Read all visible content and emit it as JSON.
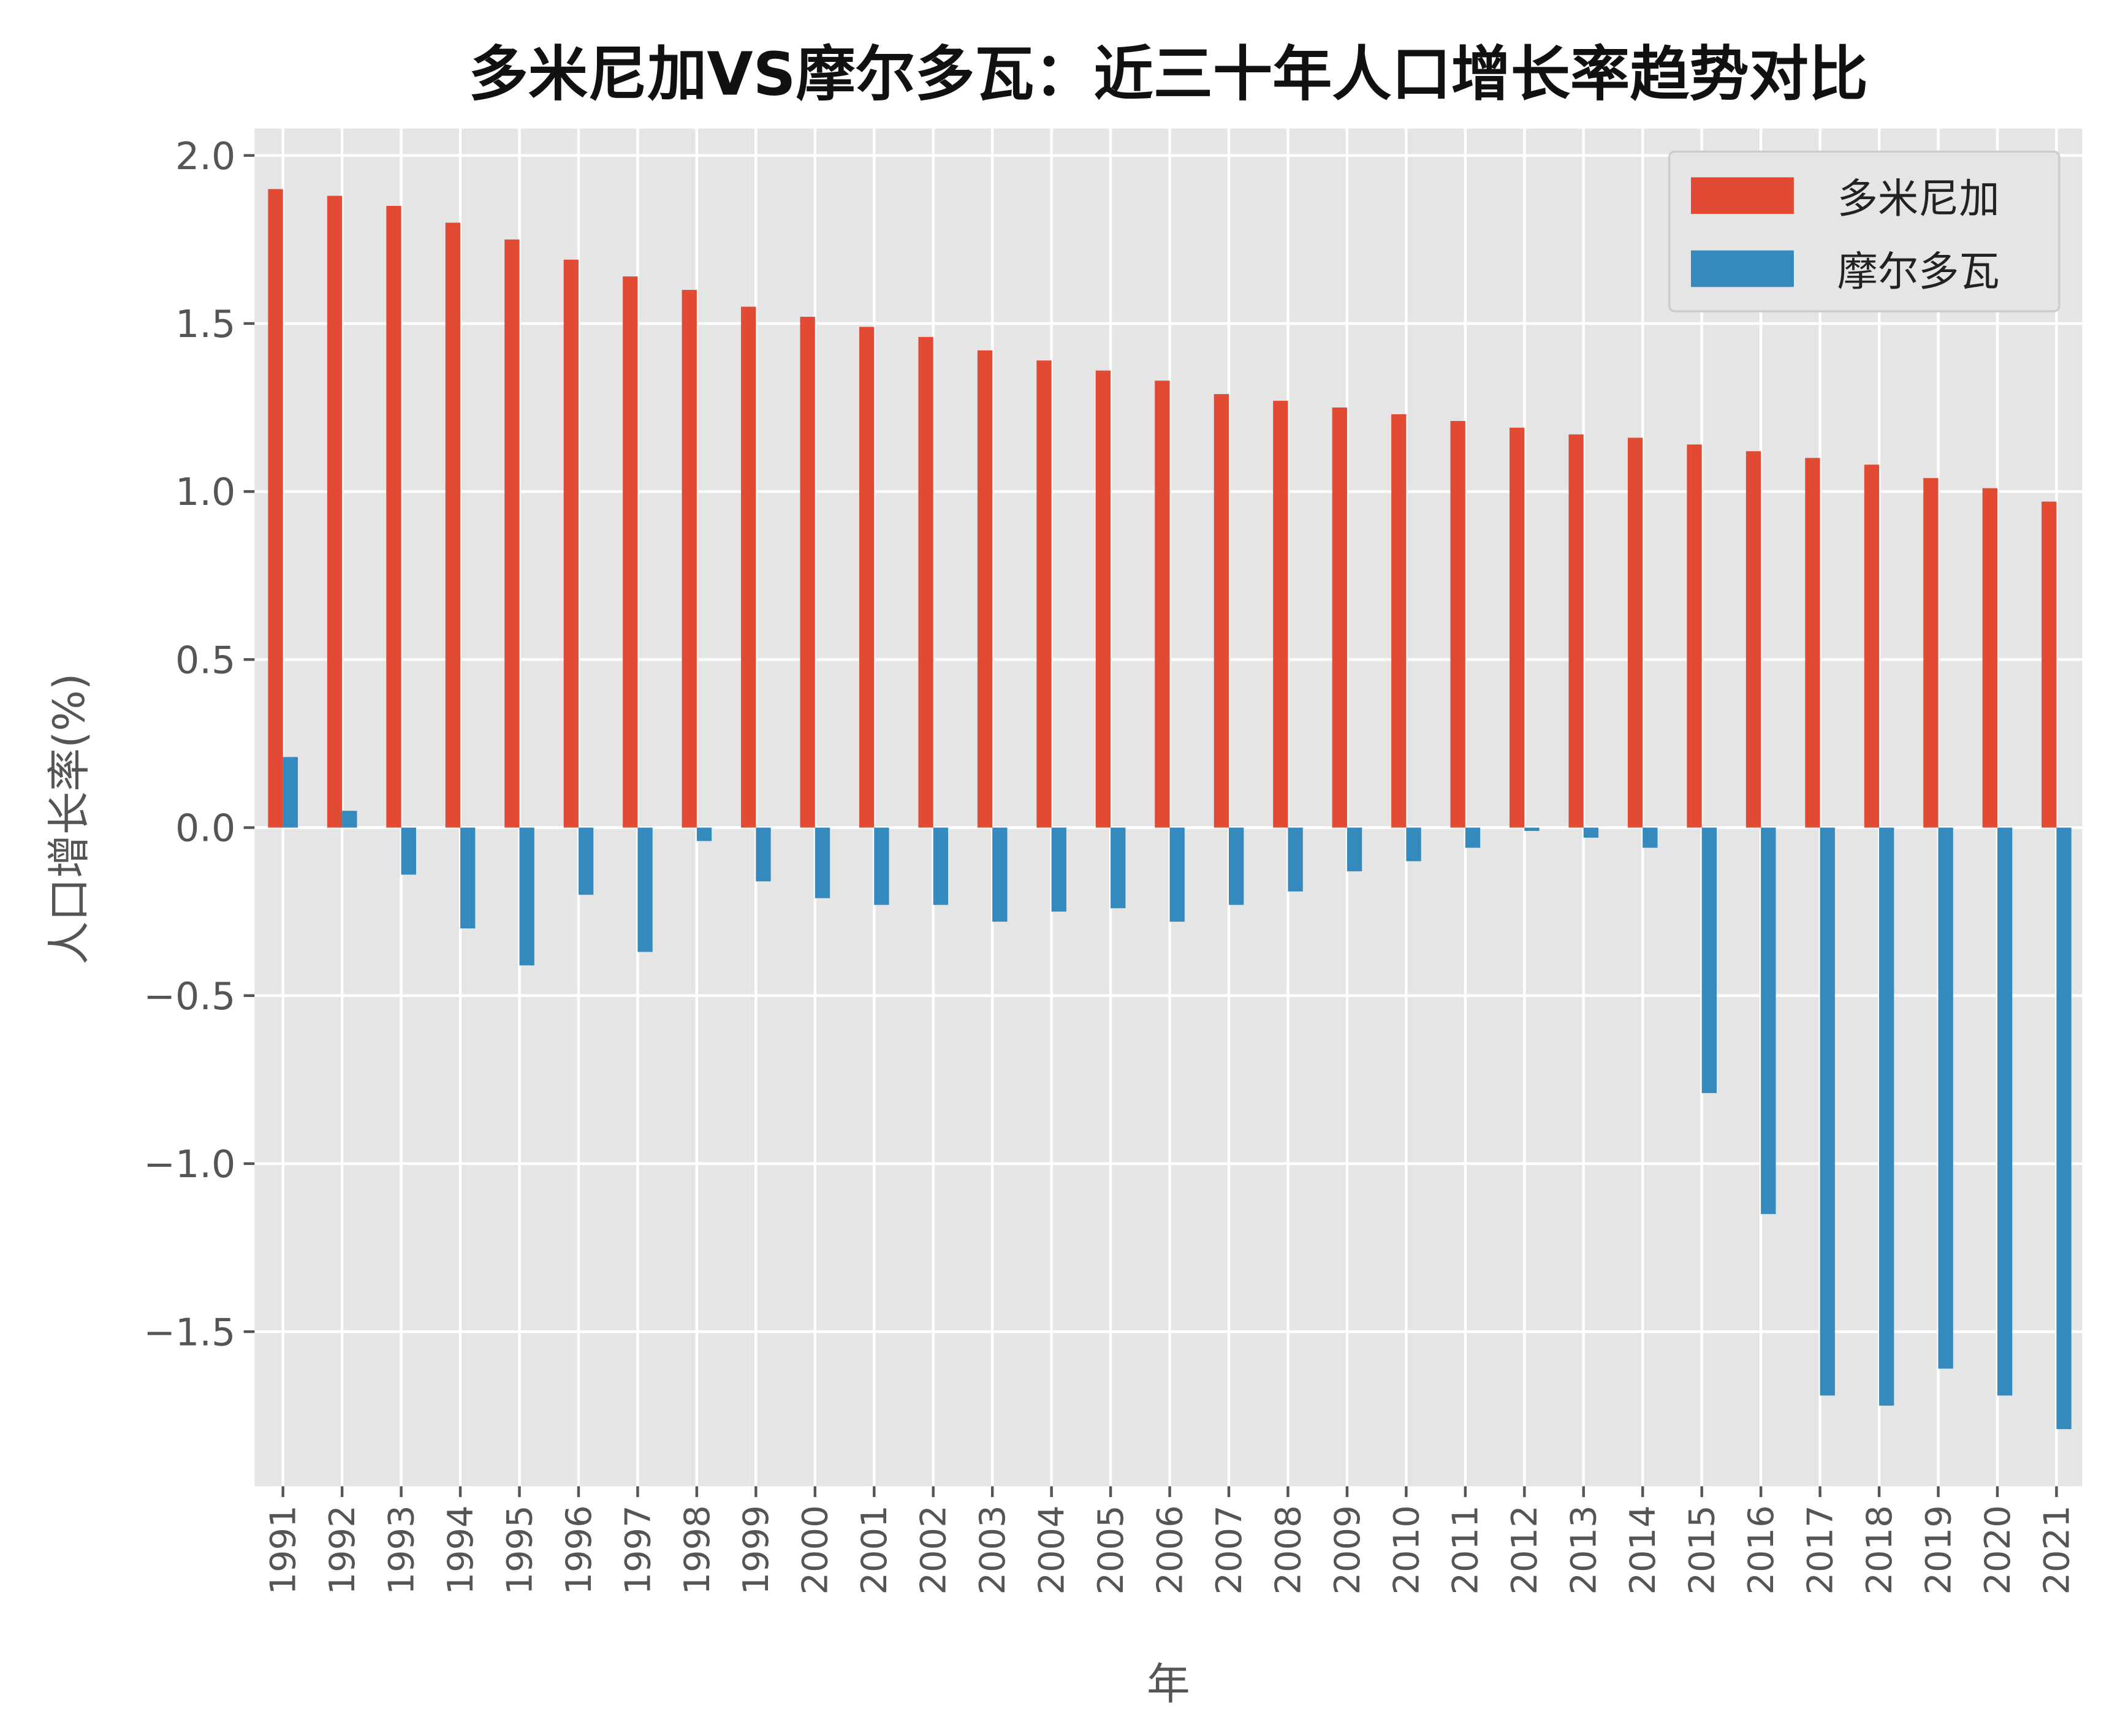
{
  "chart_data": {
    "type": "bar",
    "title": "多米尼加VS摩尔多瓦：近三十年人口增长率趋势对比",
    "xlabel": "年",
    "ylabel": "人口增长率(%)",
    "ylim": [
      -1.96,
      2.08
    ],
    "yticks": [
      "-1.5",
      "-1.0",
      "-0.5",
      "0.0",
      "0.5",
      "1.0",
      "1.5",
      "2.0"
    ],
    "grid": true,
    "legend_position": "top-right",
    "categories": [
      "1991",
      "1992",
      "1993",
      "1994",
      "1995",
      "1996",
      "1997",
      "1998",
      "1999",
      "2000",
      "2001",
      "2002",
      "2003",
      "2004",
      "2005",
      "2006",
      "2007",
      "2008",
      "2009",
      "2010",
      "2011",
      "2012",
      "2013",
      "2014",
      "2015",
      "2016",
      "2017",
      "2018",
      "2019",
      "2020",
      "2021"
    ],
    "series": [
      {
        "name": "多米尼加",
        "color": "#E24A33",
        "values": [
          1.9,
          1.88,
          1.85,
          1.8,
          1.75,
          1.69,
          1.64,
          1.6,
          1.55,
          1.52,
          1.49,
          1.46,
          1.42,
          1.39,
          1.36,
          1.33,
          1.29,
          1.27,
          1.25,
          1.23,
          1.21,
          1.19,
          1.17,
          1.16,
          1.14,
          1.12,
          1.1,
          1.08,
          1.04,
          1.01,
          0.97
        ]
      },
      {
        "name": "摩尔多瓦",
        "color": "#348ABD",
        "values": [
          0.21,
          0.05,
          -0.14,
          -0.3,
          -0.41,
          -0.2,
          -0.37,
          -0.04,
          -0.16,
          -0.21,
          -0.23,
          -0.23,
          -0.28,
          -0.25,
          -0.24,
          -0.28,
          -0.23,
          -0.19,
          -0.13,
          -0.1,
          -0.06,
          -0.01,
          -0.03,
          -0.06,
          -0.79,
          -1.15,
          -1.69,
          -1.72,
          -1.61,
          -1.69,
          -1.79
        ]
      }
    ]
  }
}
